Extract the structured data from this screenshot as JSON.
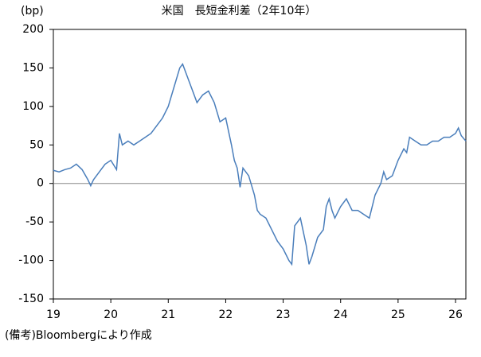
{
  "chart_data": {
    "type": "line",
    "title": "米国　長短金利差（2年10年）",
    "y_label": "(bp)",
    "note": "(備考)Bloombergにより作成",
    "x": [
      19.0,
      19.1,
      19.2,
      19.3,
      19.4,
      19.5,
      19.6,
      19.65,
      19.7,
      19.8,
      19.9,
      20.0,
      20.1,
      20.15,
      20.2,
      20.3,
      20.4,
      20.5,
      20.6,
      20.7,
      20.8,
      20.9,
      21.0,
      21.1,
      21.2,
      21.25,
      21.3,
      21.4,
      21.5,
      21.6,
      21.7,
      21.8,
      21.9,
      22.0,
      22.1,
      22.15,
      22.2,
      22.25,
      22.3,
      22.4,
      22.5,
      22.55,
      22.6,
      22.7,
      22.8,
      22.9,
      23.0,
      23.1,
      23.15,
      23.2,
      23.3,
      23.4,
      23.45,
      23.5,
      23.6,
      23.7,
      23.75,
      23.8,
      23.85,
      23.9,
      24.0,
      24.1,
      24.2,
      24.3,
      24.4,
      24.5,
      24.6,
      24.7,
      24.75,
      24.8,
      24.9,
      25.0,
      25.1,
      25.15,
      25.2,
      25.3,
      25.4,
      25.5,
      25.6,
      25.7,
      25.8,
      25.9,
      26.0,
      26.05,
      26.1,
      26.18
    ],
    "series": [
      {
        "name": "長短金利差",
        "color": "#4a7ebb",
        "values": [
          17,
          15,
          18,
          20,
          25,
          18,
          5,
          -3,
          5,
          15,
          25,
          30,
          18,
          65,
          50,
          55,
          50,
          55,
          60,
          65,
          75,
          85,
          100,
          125,
          150,
          155,
          145,
          125,
          105,
          115,
          120,
          105,
          80,
          85,
          50,
          30,
          20,
          -5,
          20,
          10,
          -15,
          -35,
          -40,
          -45,
          -60,
          -75,
          -85,
          -100,
          -105,
          -55,
          -45,
          -80,
          -105,
          -95,
          -70,
          -60,
          -30,
          -20,
          -35,
          -45,
          -30,
          -20,
          -35,
          -35,
          -40,
          -45,
          -15,
          0,
          15,
          5,
          10,
          30,
          45,
          40,
          60,
          55,
          50,
          50,
          55,
          55,
          60,
          60,
          65,
          72,
          62,
          55
        ]
      }
    ],
    "xlim": [
      19,
      26.18
    ],
    "xticks": [
      19,
      20,
      21,
      22,
      23,
      24,
      25,
      26
    ],
    "ylim": [
      -150,
      200
    ],
    "yticks": [
      -150,
      -100,
      -50,
      0,
      50,
      100,
      150,
      200
    ],
    "zero_line": true
  }
}
